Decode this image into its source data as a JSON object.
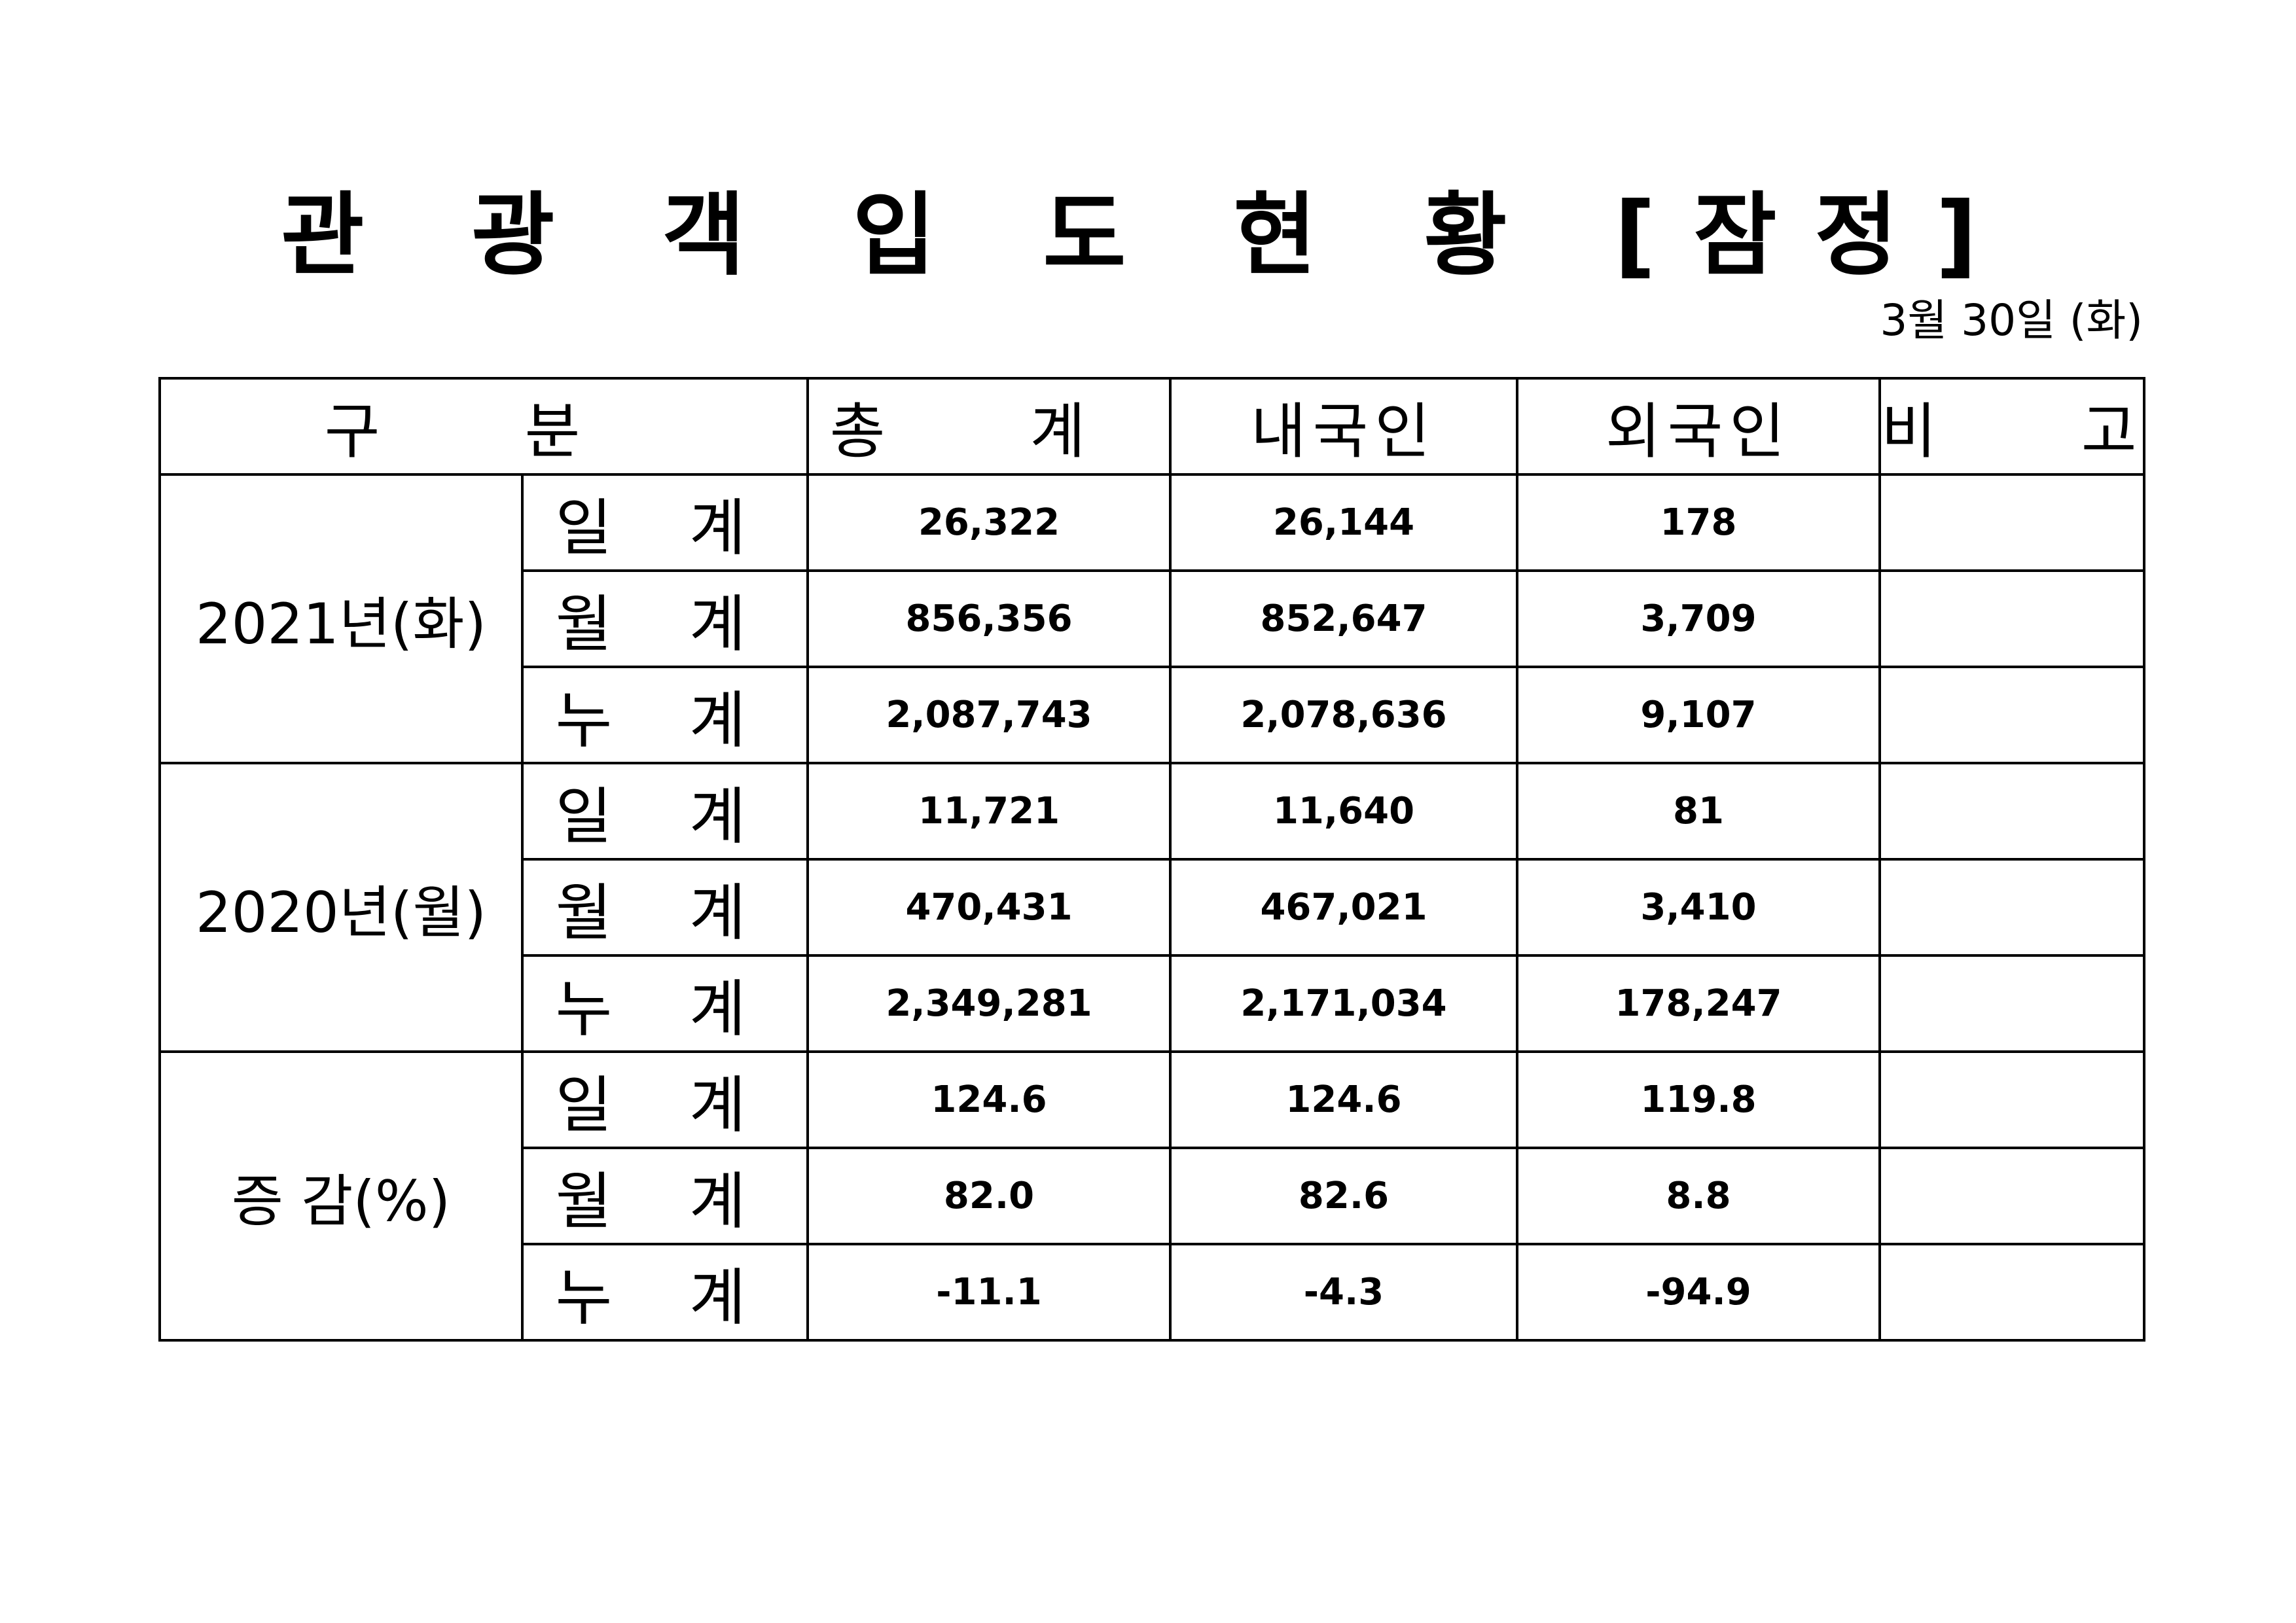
{
  "title": "관 광 객 입 도 현 황 [잠정]",
  "date": "3월 30일 (화)",
  "table": {
    "headers": {
      "category": "구  분",
      "total": "총  계",
      "domestic": "내국인",
      "foreign": "외국인",
      "remarks": "비  고"
    },
    "groups": [
      {
        "label": "2021년(화)",
        "rows": [
          {
            "sub": "일 계",
            "total": "26,322",
            "domestic": "26,144",
            "foreign": "178",
            "remarks": ""
          },
          {
            "sub": "월 계",
            "total": "856,356",
            "domestic": "852,647",
            "foreign": "3,709",
            "remarks": ""
          },
          {
            "sub": "누 계",
            "total": "2,087,743",
            "domestic": "2,078,636",
            "foreign": "9,107",
            "remarks": ""
          }
        ]
      },
      {
        "label": "2020년(월)",
        "rows": [
          {
            "sub": "일 계",
            "total": "11,721",
            "domestic": "11,640",
            "foreign": "81",
            "remarks": ""
          },
          {
            "sub": "월 계",
            "total": "470,431",
            "domestic": "467,021",
            "foreign": "3,410",
            "remarks": ""
          },
          {
            "sub": "누 계",
            "total": "2,349,281",
            "domestic": "2,171,034",
            "foreign": "178,247",
            "remarks": ""
          }
        ]
      },
      {
        "label": "증 감(%)",
        "rows": [
          {
            "sub": "일 계",
            "total": "124.6",
            "domestic": "124.6",
            "foreign": "119.8",
            "remarks": ""
          },
          {
            "sub": "월 계",
            "total": "82.0",
            "domestic": "82.6",
            "foreign": "8.8",
            "remarks": ""
          },
          {
            "sub": "누 계",
            "total": "-11.1",
            "domestic": "-4.3",
            "foreign": "-94.9",
            "remarks": ""
          }
        ]
      }
    ]
  }
}
